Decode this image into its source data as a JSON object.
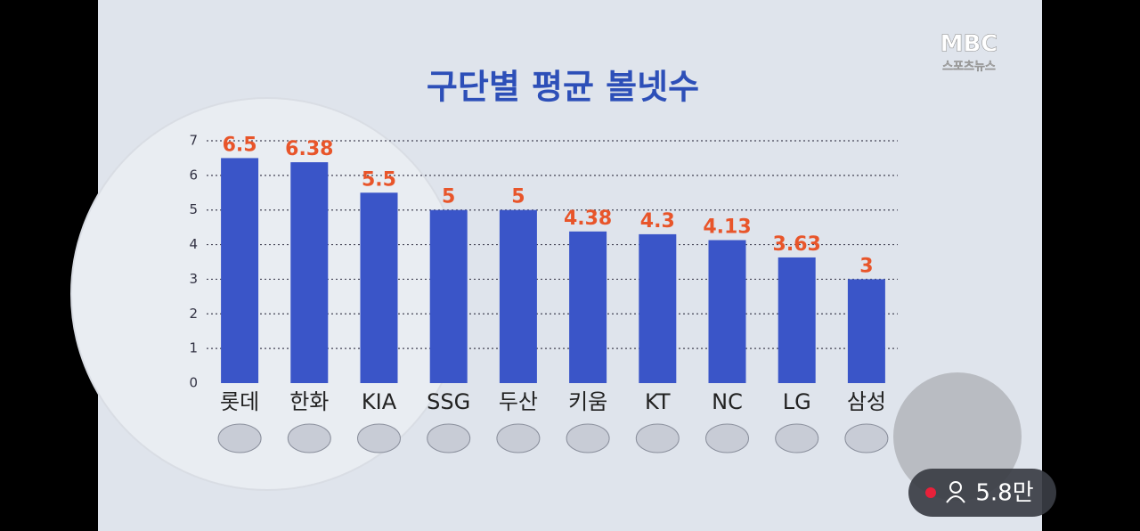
{
  "chart_data": {
    "type": "bar",
    "title": "구단별 평균 볼넷수",
    "categories": [
      "롯데",
      "한화",
      "KIA",
      "SSG",
      "두산",
      "키움",
      "KT",
      "NC",
      "LG",
      "삼성"
    ],
    "values": [
      6.5,
      6.38,
      5.5,
      5,
      5,
      4.38,
      4.3,
      4.13,
      3.63,
      3
    ],
    "color": "#3a55c8",
    "label_color": "#e8552a",
    "ylim": [
      0,
      7
    ],
    "yticks": [
      0,
      1,
      2,
      3,
      4,
      5,
      6,
      7
    ],
    "grid": true
  },
  "logo": {
    "brand": "MBC",
    "section": "스포츠뉴스"
  },
  "live_badge": {
    "viewers": "5.8만"
  }
}
